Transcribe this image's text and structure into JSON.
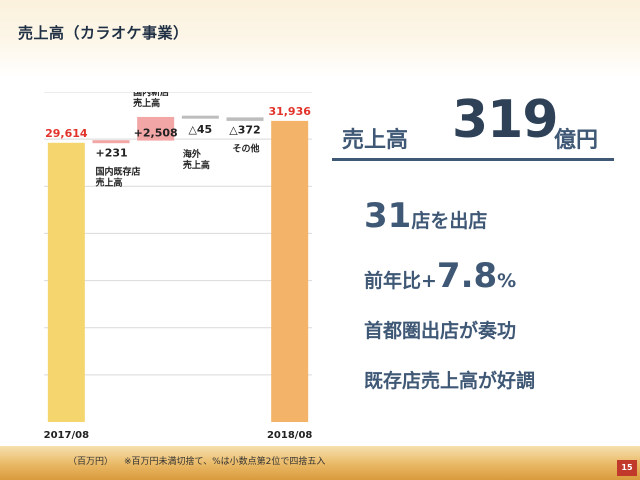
{
  "title": "売上高（カラオケ事業）",
  "chart_data": {
    "type": "bar",
    "subtype": "waterfall",
    "categories": [
      "2017/08",
      "国内既存店売上高",
      "国内新店売上高",
      "海外売上高",
      "その他",
      "2018/08"
    ],
    "category_labels": [
      [
        "2017/08"
      ],
      [
        "国内既存店",
        "売上高"
      ],
      [
        "国内新店",
        "売上高"
      ],
      [
        "海外",
        "売上高"
      ],
      [
        "その他"
      ],
      [
        "2018/08"
      ]
    ],
    "values": [
      29614,
      231,
      2508,
      -45,
      -372,
      31936
    ],
    "value_labels": [
      "29,614",
      "+231",
      "+2,508",
      "△45",
      "△372",
      "31,936"
    ],
    "bar_kinds": [
      "total",
      "increase",
      "increase",
      "decrease",
      "decrease",
      "total"
    ],
    "colors": {
      "total_start": "#f5d66e",
      "increase": "#f2a6a6",
      "decrease": "#bdbdbd",
      "total_end": "#f3b469",
      "total_label": "#e2332b",
      "delta_label": "#222222",
      "grid": "#d9d9d9"
    },
    "ylim": [
      0,
      35000
    ],
    "grid": true,
    "unit": "（百万円）",
    "note": "※百万円未満切捨て、%は小数点第2位で四捨五入"
  },
  "summary": {
    "sales_label": "売上高",
    "sales_value": "319",
    "sales_unit": "億円",
    "stores_number": "31",
    "stores_text": "店を出店",
    "yoy_prefix": "前年比+",
    "yoy_value": "7.8",
    "yoy_unit": "%",
    "point3": "首都圏出店が奏功",
    "point4": "既存店売上高が好調"
  },
  "page_number": "15"
}
